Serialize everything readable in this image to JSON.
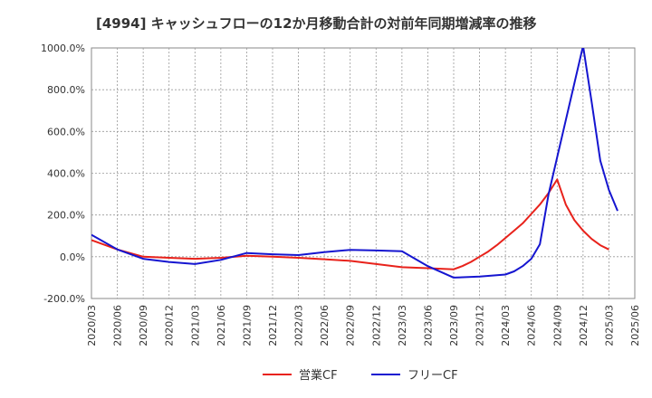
{
  "chart_data": {
    "type": "line",
    "title": "[4994]  キャッシュフローの12か月移動合計の対前年同期増減率の推移",
    "xlabel": "",
    "ylabel": "",
    "ylim": [
      -200,
      1000
    ],
    "y_ticks": [
      -200,
      0,
      200,
      400,
      600,
      800,
      1000
    ],
    "y_tick_labels": [
      "-200.0%",
      "0.0%",
      "200.0%",
      "400.0%",
      "600.0%",
      "800.0%",
      "1000.0%"
    ],
    "categories": [
      "2020/03",
      "2020/06",
      "2020/09",
      "2020/12",
      "2021/03",
      "2021/06",
      "2021/09",
      "2021/12",
      "2022/03",
      "2022/06",
      "2022/09",
      "2022/12",
      "2023/03",
      "2023/06",
      "2023/09",
      "2023/12",
      "2024/03",
      "2024/06",
      "2024/09",
      "2024/12",
      "2025/03",
      "2025/06"
    ],
    "grid": true,
    "series": [
      {
        "name": "営業CF",
        "color": "#e8221b",
        "points": [
          {
            "x": "2020/03",
            "y": 80
          },
          {
            "x": "2020/06",
            "y": 35
          },
          {
            "x": "2020/09",
            "y": 0
          },
          {
            "x": "2020/12",
            "y": -5
          },
          {
            "x": "2021/03",
            "y": -10
          },
          {
            "x": "2021/06",
            "y": -5
          },
          {
            "x": "2021/09",
            "y": 5
          },
          {
            "x": "2021/12",
            "y": 0
          },
          {
            "x": "2022/03",
            "y": -5
          },
          {
            "x": "2022/06",
            "y": -12
          },
          {
            "x": "2022/09",
            "y": -20
          },
          {
            "x": "2022/12",
            "y": -35
          },
          {
            "x": "2023/03",
            "y": -50
          },
          {
            "x": "2023/06",
            "y": -55
          },
          {
            "x": "2023/09",
            "y": -60
          },
          {
            "x": "2023/10",
            "y": -45
          },
          {
            "x": "2023/11",
            "y": -25
          },
          {
            "x": "2023/12",
            "y": 0
          },
          {
            "x": "2024/01",
            "y": 25
          },
          {
            "x": "2024/02",
            "y": 55
          },
          {
            "x": "2024/03",
            "y": 90
          },
          {
            "x": "2024/04",
            "y": 125
          },
          {
            "x": "2024/05",
            "y": 160
          },
          {
            "x": "2024/06",
            "y": 205
          },
          {
            "x": "2024/07",
            "y": 250
          },
          {
            "x": "2024/08",
            "y": 305
          },
          {
            "x": "2024/09",
            "y": 370
          },
          {
            "x": "2024/10",
            "y": 250
          },
          {
            "x": "2024/11",
            "y": 175
          },
          {
            "x": "2024/12",
            "y": 125
          },
          {
            "x": "2025/01",
            "y": 85
          },
          {
            "x": "2025/02",
            "y": 55
          },
          {
            "x": "2025/03",
            "y": 35
          }
        ]
      },
      {
        "name": "フリーCF",
        "color": "#1515d0",
        "points": [
          {
            "x": "2020/03",
            "y": 105
          },
          {
            "x": "2020/06",
            "y": 35
          },
          {
            "x": "2020/09",
            "y": -10
          },
          {
            "x": "2020/12",
            "y": -25
          },
          {
            "x": "2021/03",
            "y": -35
          },
          {
            "x": "2021/06",
            "y": -15
          },
          {
            "x": "2021/09",
            "y": 18
          },
          {
            "x": "2021/12",
            "y": 12
          },
          {
            "x": "2022/03",
            "y": 8
          },
          {
            "x": "2022/06",
            "y": 22
          },
          {
            "x": "2022/09",
            "y": 33
          },
          {
            "x": "2022/12",
            "y": 30
          },
          {
            "x": "2023/03",
            "y": 26
          },
          {
            "x": "2023/06",
            "y": -45
          },
          {
            "x": "2023/09",
            "y": -100
          },
          {
            "x": "2023/12",
            "y": -95
          },
          {
            "x": "2024/03",
            "y": -85
          },
          {
            "x": "2024/04",
            "y": -70
          },
          {
            "x": "2024/05",
            "y": -45
          },
          {
            "x": "2024/06",
            "y": -10
          },
          {
            "x": "2024/07",
            "y": 60
          },
          {
            "x": "2024/08",
            "y": 300
          },
          {
            "x": "2024/12",
            "y": 1010
          },
          {
            "x": "2025/01",
            "y": 740
          },
          {
            "x": "2025/02",
            "y": 460
          },
          {
            "x": "2025/03",
            "y": 320
          },
          {
            "x": "2025/04",
            "y": 220
          }
        ]
      }
    ],
    "legend": {
      "placement": "bottom-center",
      "entries": [
        "営業CF",
        "フリーCF"
      ]
    }
  }
}
